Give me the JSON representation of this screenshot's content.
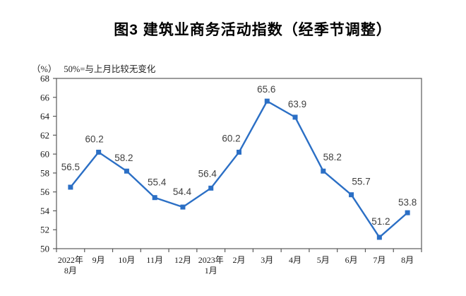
{
  "title": "图3 建筑业商务活动指数（经季节调整）",
  "subtitle": {
    "unit": "（%）",
    "note": "50%=与上月比较无变化"
  },
  "chart_data": {
    "type": "line",
    "title": "图3 建筑业商务活动指数（经季节调整）",
    "subtitle": "（%）50%=与上月比较无变化",
    "categories": [
      "2022年\n8月",
      "9月",
      "10月",
      "11月",
      "12月",
      "2023年\n1月",
      "2月",
      "3月",
      "4月",
      "5月",
      "6月",
      "7月",
      "8月"
    ],
    "values": [
      56.5,
      60.2,
      58.2,
      55.4,
      54.4,
      56.4,
      60.2,
      65.6,
      63.9,
      58.2,
      55.7,
      51.2,
      53.8
    ],
    "xlabel": "",
    "ylabel": "（%）",
    "ylim": [
      50,
      68
    ],
    "ytick_step": 2,
    "grid": false,
    "legend_position": "none",
    "marker": "square",
    "line_color": "#2b6fc5",
    "label_color": "#3f3f3f",
    "axis_color": "#595959",
    "text_color": "#1a1a1a"
  }
}
